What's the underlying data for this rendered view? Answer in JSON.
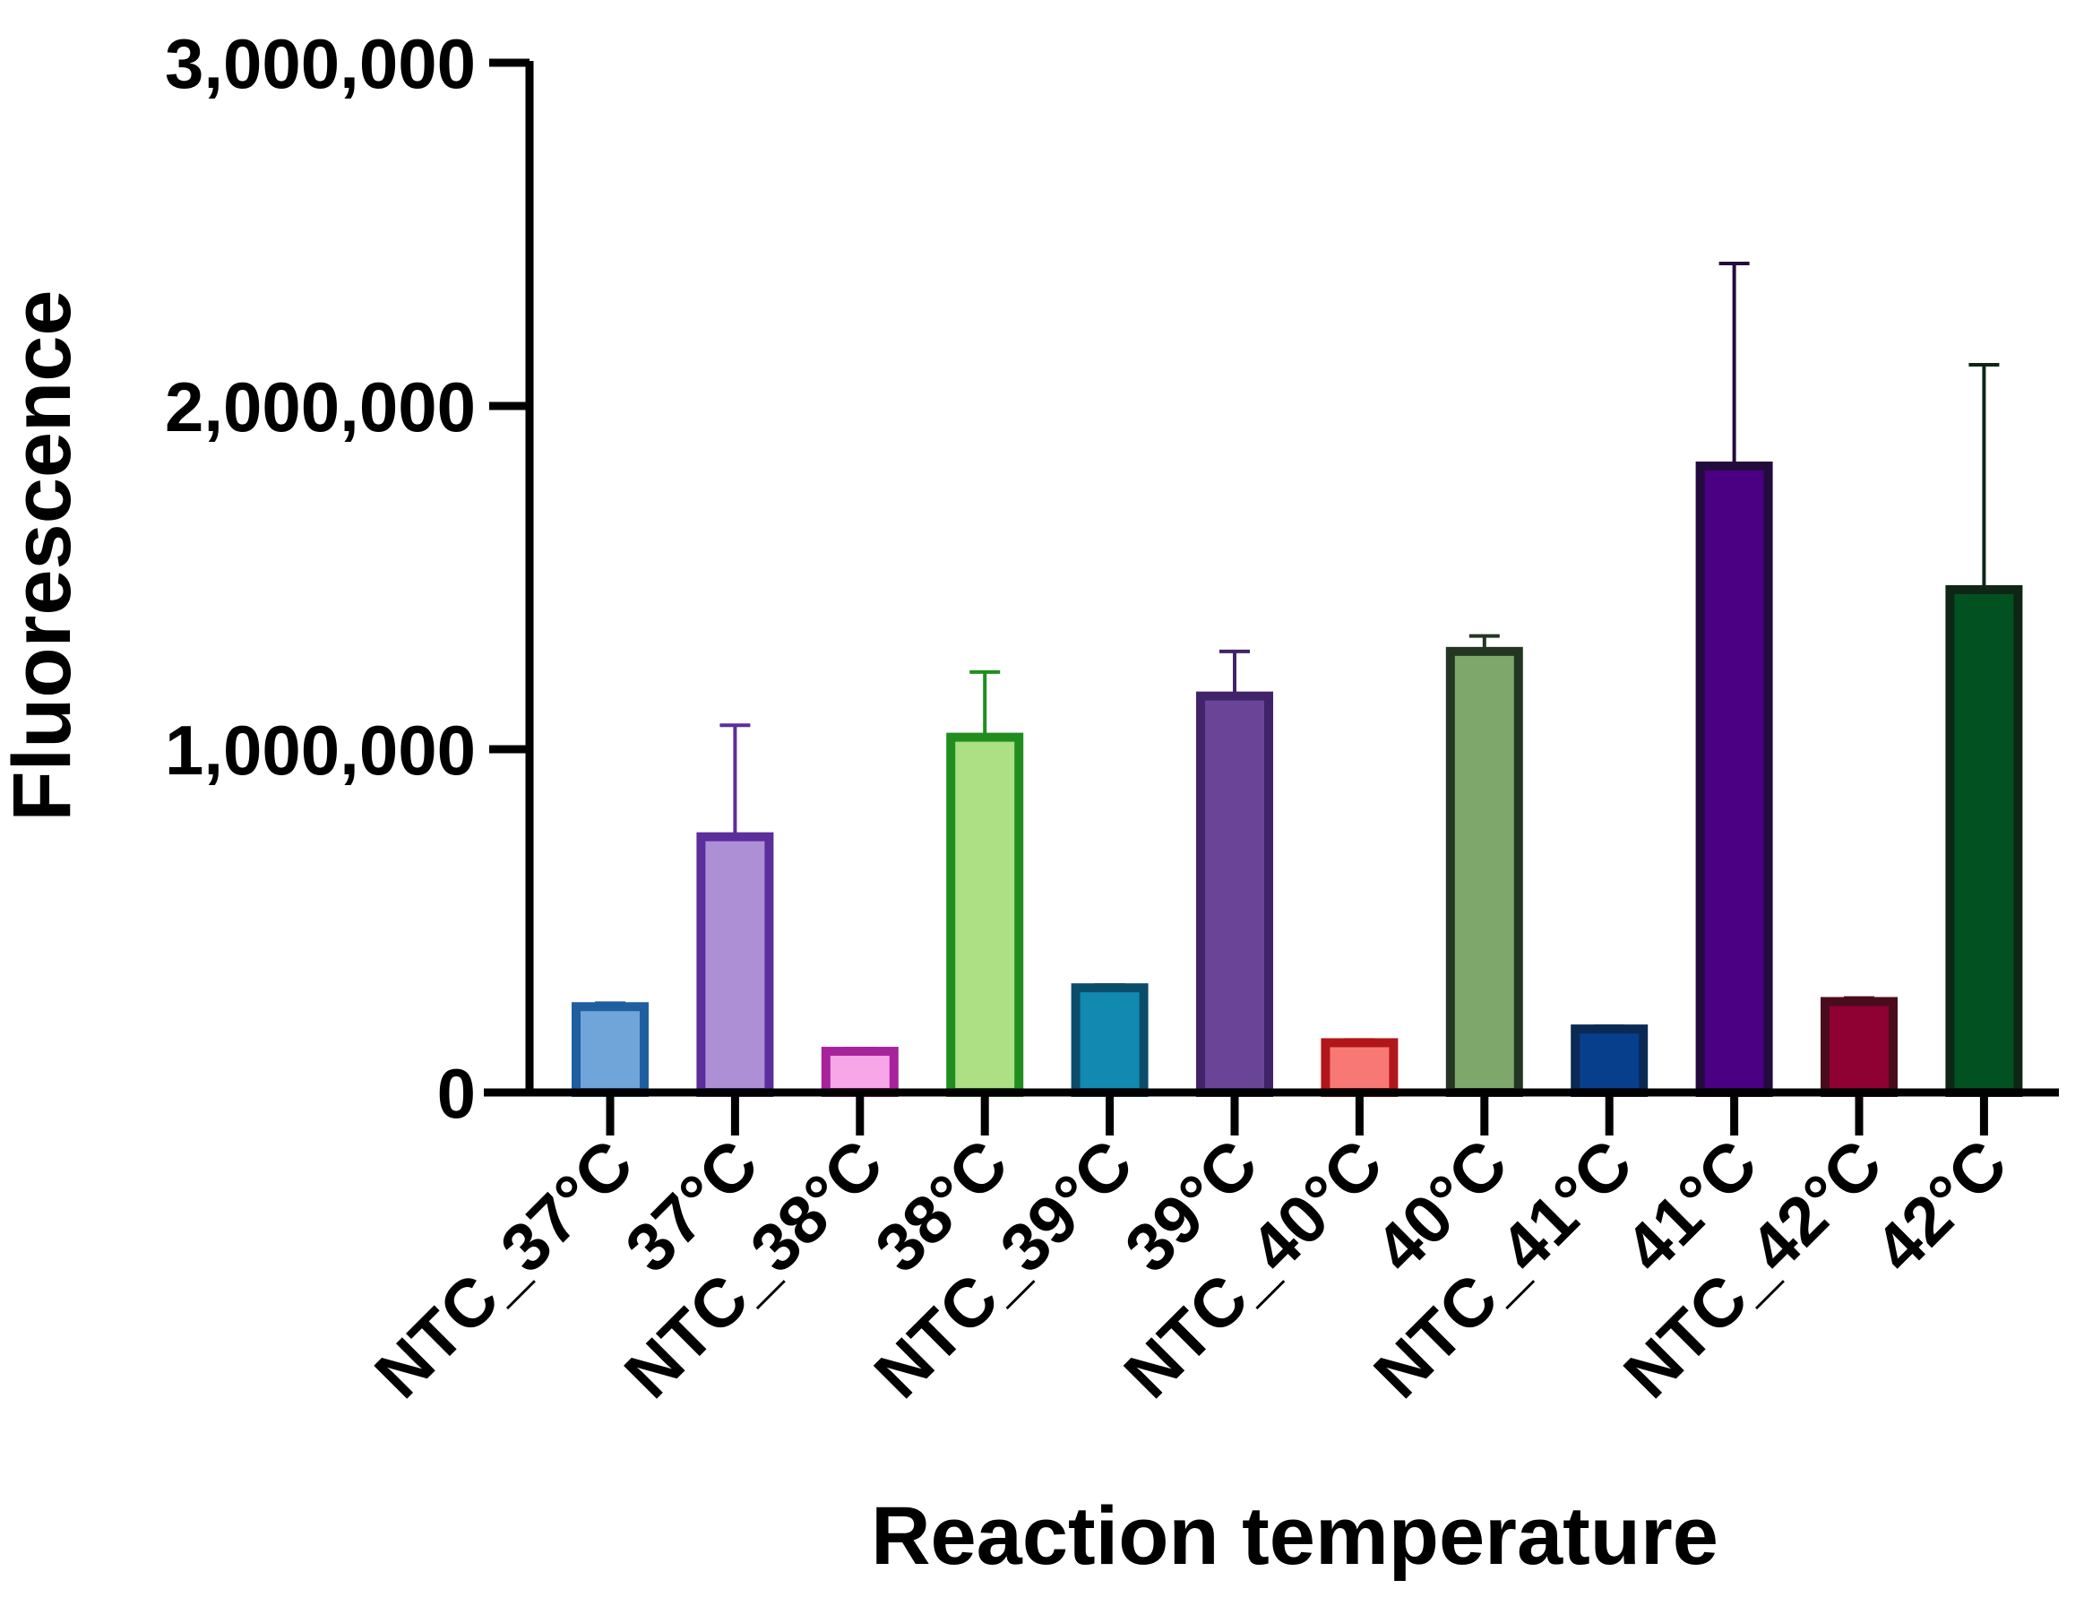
{
  "chart_data": {
    "type": "bar",
    "xlabel": "Reaction temperature",
    "ylabel": "Fluorescence",
    "ylim": [
      0,
      3000000
    ],
    "yticks": [
      0,
      1000000,
      2000000,
      3000000
    ],
    "ytick_labels": [
      "0",
      "1,000,000",
      "2,000,000",
      "3,000,000"
    ],
    "grid": false,
    "bars": [
      {
        "label": "NTC_37°C",
        "value": 250000,
        "error": 10000,
        "fill": "#6fa5d8",
        "stroke": "#1f5fa0"
      },
      {
        "label": "37°C",
        "value": 745000,
        "error": 325000,
        "fill": "#ad8fd6",
        "stroke": "#5b2e9c"
      },
      {
        "label": "NTC_38°C",
        "value": 120000,
        "error": 8000,
        "fill": "#f7a6e8",
        "stroke": "#a8229c"
      },
      {
        "label": "38°C",
        "value": 1035000,
        "error": 190000,
        "fill": "#addf85",
        "stroke": "#1f8e1f"
      },
      {
        "label": "NTC_39°C",
        "value": 305000,
        "error": 8000,
        "fill": "#1189b1",
        "stroke": "#0a4d6a"
      },
      {
        "label": "39°C",
        "value": 1155000,
        "error": 130000,
        "fill": "#6a4597",
        "stroke": "#41236a"
      },
      {
        "label": "NTC_40°C",
        "value": 145000,
        "error": 8000,
        "fill": "#f87876",
        "stroke": "#b1161a"
      },
      {
        "label": "40°C",
        "value": 1285000,
        "error": 45000,
        "fill": "#7ea86b",
        "stroke": "#233622"
      },
      {
        "label": "NTC_41°C",
        "value": 185000,
        "error": 8000,
        "fill": "#073f8c",
        "stroke": "#0a2a55"
      },
      {
        "label": "41°C",
        "value": 1825000,
        "error": 590000,
        "fill": "#4b0083",
        "stroke": "#230b3e"
      },
      {
        "label": "NTC_42°C",
        "value": 265000,
        "error": 10000,
        "fill": "#8f0033",
        "stroke": "#4a0c1c"
      },
      {
        "label": "42°C",
        "value": 1465000,
        "error": 655000,
        "fill": "#025221",
        "stroke": "#0d2615"
      }
    ]
  }
}
